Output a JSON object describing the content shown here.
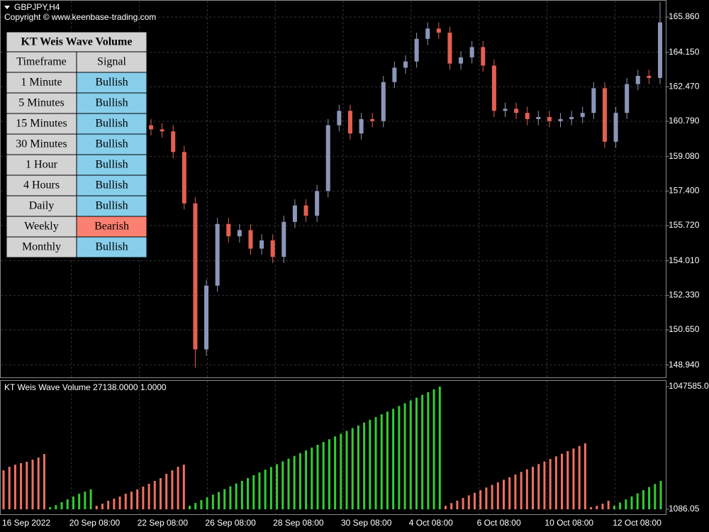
{
  "header": {
    "symbol": "GBPJPY,H4",
    "copyright": "Copyright © www.keenbase-trading.com"
  },
  "table": {
    "title": "KT Weis Wave Volume",
    "columns": [
      "Timeframe",
      "Signal"
    ],
    "rows": [
      {
        "timeframe": "1 Minute",
        "signal": "Bullish",
        "color": "#87ceeb"
      },
      {
        "timeframe": "5 Minutes",
        "signal": "Bullish",
        "color": "#87ceeb"
      },
      {
        "timeframe": "15 Minutes",
        "signal": "Bullish",
        "color": "#87ceeb"
      },
      {
        "timeframe": "30 Minutes",
        "signal": "Bullish",
        "color": "#87ceeb"
      },
      {
        "timeframe": "1 Hour",
        "signal": "Bullish",
        "color": "#87ceeb"
      },
      {
        "timeframe": "4 Hours",
        "signal": "Bullish",
        "color": "#87ceeb"
      },
      {
        "timeframe": "Daily",
        "signal": "Bullish",
        "color": "#87ceeb"
      },
      {
        "timeframe": "Weekly",
        "signal": "Bearish",
        "color": "#fa8072"
      },
      {
        "timeframe": "Monthly",
        "signal": "Bullish",
        "color": "#87ceeb"
      }
    ]
  },
  "chart_data": [
    {
      "type": "candlestick",
      "up_color": "#8c96b8",
      "down_color": "#e35f50",
      "open": [
        160.6,
        160.4,
        160.3,
        159.3,
        156.8,
        149.7,
        152.8,
        155.8,
        155.2,
        155.5,
        154.6,
        155.0,
        154.2,
        155.9,
        156.7,
        156.2,
        157.4,
        160.6,
        161.3,
        160.2,
        160.9,
        160.8,
        162.7,
        163.4,
        163.7,
        164.8,
        165.3,
        165.1,
        163.6,
        163.9,
        164.4,
        163.5,
        161.3,
        161.4,
        161.2,
        160.9,
        161.0,
        160.8,
        160.9,
        161.0,
        161.2,
        162.4,
        159.8,
        161.2,
        162.6,
        163.0,
        162.9
      ],
      "high": [
        160.9,
        160.7,
        160.6,
        159.6,
        157.1,
        153.1,
        156.1,
        156.1,
        155.8,
        155.8,
        155.3,
        155.3,
        156.2,
        157.0,
        157.0,
        157.7,
        160.9,
        161.6,
        161.6,
        161.2,
        161.2,
        163.0,
        163.7,
        164.0,
        165.1,
        165.6,
        165.6,
        165.4,
        164.2,
        164.7,
        164.7,
        163.8,
        161.7,
        161.7,
        161.5,
        161.3,
        161.3,
        161.2,
        161.3,
        161.5,
        162.7,
        162.7,
        161.5,
        162.9,
        163.3,
        163.3,
        166.6
      ],
      "low": [
        160.1,
        160.0,
        159.0,
        156.5,
        148.8,
        149.4,
        152.5,
        154.9,
        154.9,
        154.3,
        154.3,
        153.9,
        153.9,
        155.6,
        155.9,
        155.9,
        157.1,
        160.3,
        159.9,
        159.9,
        160.5,
        160.5,
        162.4,
        163.1,
        163.4,
        164.5,
        164.8,
        163.3,
        163.3,
        163.6,
        163.2,
        161.0,
        161.0,
        160.9,
        160.6,
        160.6,
        160.5,
        160.5,
        160.6,
        160.7,
        160.9,
        159.5,
        159.5,
        160.9,
        162.3,
        162.6,
        162.6
      ],
      "close": [
        160.4,
        160.3,
        159.3,
        156.8,
        149.7,
        152.8,
        155.8,
        155.2,
        155.5,
        154.6,
        155.0,
        154.2,
        155.9,
        156.7,
        156.2,
        157.4,
        160.6,
        161.3,
        160.2,
        160.9,
        160.8,
        162.7,
        163.4,
        163.7,
        164.8,
        165.3,
        165.1,
        163.6,
        163.9,
        164.4,
        163.5,
        161.3,
        161.4,
        161.2,
        160.9,
        161.0,
        160.8,
        160.9,
        161.0,
        161.2,
        162.4,
        159.8,
        161.2,
        162.6,
        163.0,
        162.9,
        165.6
      ],
      "ylim": [
        148.34,
        166.69
      ],
      "yticks": [
        {
          "value": 165.86,
          "label": "165.860"
        },
        {
          "value": 164.15,
          "label": "164.150"
        },
        {
          "value": 162.47,
          "label": "162.470"
        },
        {
          "value": 160.79,
          "label": "160.790"
        },
        {
          "value": 159.08,
          "label": "159.080"
        },
        {
          "value": 157.4,
          "label": "157.400"
        },
        {
          "value": 155.72,
          "label": "155.720"
        },
        {
          "value": 154.01,
          "label": "154.010"
        },
        {
          "value": 152.33,
          "label": "152.330"
        },
        {
          "value": 150.65,
          "label": "150.650"
        },
        {
          "value": 148.94,
          "label": "148.940"
        }
      ],
      "grid": true,
      "x_labels": [
        "16 Sep 2022",
        "20 Sep 08:00",
        "22 Sep 08:00",
        "26 Sep 08:00",
        "28 Sep 08:00",
        "30 Sep 08:00",
        "4 Oct 08:00",
        "6 Oct 08:00",
        "10 Oct 08:00",
        "12 Oct 08:00"
      ]
    },
    {
      "type": "bar",
      "title": "KT Weis Wave Volume 27138.0000 1.0000",
      "waves": [
        {
          "color": "#f07060",
          "values": [
            333000,
            363000,
            381000,
            394000,
            406000,
            424000,
            442000,
            472000
          ]
        },
        {
          "color": "#32cd32",
          "values": [
            18000,
            36000,
            61000,
            85000,
            109000,
            133000,
            151000,
            170000
          ]
        },
        {
          "color": "#f07060",
          "values": [
            30000,
            48000,
            73000,
            91000,
            109000,
            133000,
            151000,
            170000,
            194000,
            218000,
            242000,
            266000,
            303000,
            333000,
            363000,
            381000
          ]
        },
        {
          "color": "#32cd32",
          "values": [
            30000,
            54000,
            78000,
            101000,
            125000,
            148000,
            172000,
            196000,
            220000,
            243000,
            267000,
            291000,
            314000,
            338000,
            361000,
            385000,
            409000,
            432000,
            456000,
            480000,
            503000,
            527000,
            551000,
            575000,
            598000,
            622000,
            645000,
            669000,
            693000,
            716000,
            740000,
            764000,
            787000,
            811000,
            834000,
            858000,
            882000,
            905000,
            929000,
            953000,
            977000,
            1000000,
            1024000,
            1047585
          ]
        },
        {
          "color": "#f07060",
          "values": [
            30000,
            53000,
            74000,
            97000,
            119000,
            141000,
            163000,
            186000,
            208000,
            230000,
            252000,
            274000,
            297000,
            319000,
            341000,
            363000,
            386000,
            408000,
            430000,
            452000,
            474000,
            497000,
            519000,
            541000,
            563000
          ]
        },
        {
          "color": "#f07060",
          "values": [
            18000,
            30000,
            48000,
            73000
          ]
        },
        {
          "color": "#32cd32",
          "values": [
            30000,
            57000,
            84000,
            110000,
            136000,
            163000,
            190000,
            216000,
            242000
          ]
        }
      ],
      "ylim": [
        0,
        1047585
      ],
      "yticks": [
        {
          "value": 1047585,
          "label": "1047585.0"
        },
        {
          "value": 1086.05,
          "label": "1086.05"
        }
      ]
    }
  ]
}
